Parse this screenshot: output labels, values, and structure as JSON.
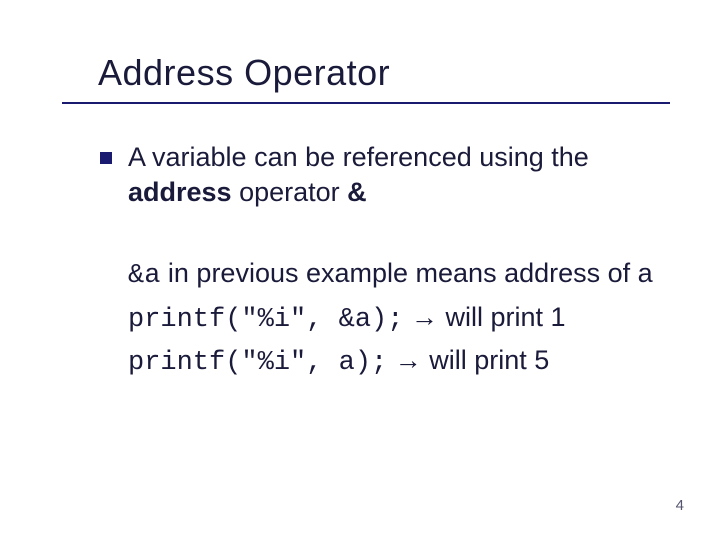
{
  "colors": {
    "rule": "#1a1a70",
    "bullet": "#1a1a70",
    "text": "#1a1a3a"
  },
  "title": "Address Operator",
  "bullet": {
    "fragments": {
      "t1": "A variable can be referenced using the ",
      "t2": "address",
      "t3": " operator ",
      "t4": "&"
    }
  },
  "body": {
    "line1": {
      "code": "&a",
      "rest": " in previous example means address of a"
    },
    "line2": {
      "code": "printf(\"%i\", &a);",
      "arrow": " → ",
      "tail": "will print 1"
    },
    "line3": {
      "code": "printf(\"%i\", a);",
      "arrow": " → ",
      "tail": "will print 5"
    }
  },
  "page": "4"
}
